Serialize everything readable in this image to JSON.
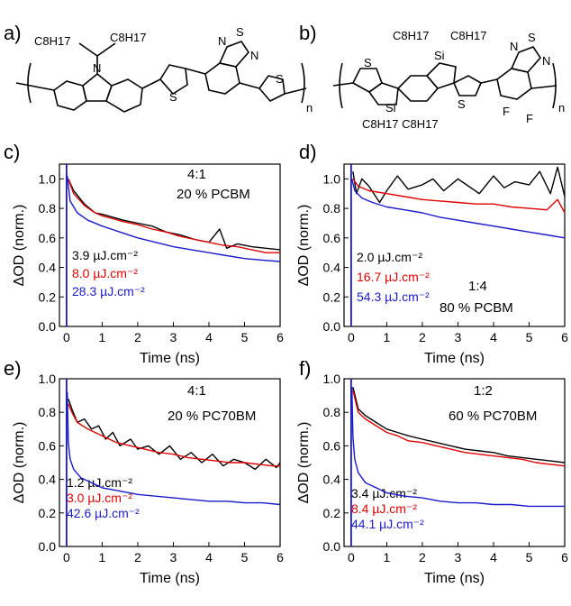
{
  "panels": {
    "a": "a)",
    "b": "b)",
    "c": "c)",
    "d": "d)",
    "e": "e)",
    "f": "f)"
  },
  "structure_a": {
    "atoms": {
      "n_top": "N",
      "s_thio1": "S",
      "s_thio2": "S",
      "s_btd": "S",
      "n_btd1": "N",
      "n_btd2": "N",
      "sub_n": "n"
    },
    "alkyl_left": "C8H17",
    "alkyl_right": "C8H17"
  },
  "structure_b": {
    "atoms": {
      "si_top": "Si",
      "si_bottom": "Si",
      "s_left": "S",
      "s_mid": "S",
      "s_btd": "S",
      "n_btd1": "N",
      "n_btd2": "N",
      "f1": "F",
      "f2": "F",
      "sub_n": "n"
    },
    "alkyl_top_left": "C8H17",
    "alkyl_top_right": "C8H17",
    "alkyl_bottom": "C8H17 C8H17"
  },
  "colors": {
    "black": "#000000",
    "red": "#e00000",
    "blue": "#1a1acc"
  },
  "chart_data": [
    {
      "id": "c",
      "type": "line",
      "xlabel": "Time (ns)",
      "ylabel": "ΔOD (norm.)",
      "xlim": [
        -0.2,
        6
      ],
      "ylim": [
        0,
        1.1
      ],
      "xticks": [
        0,
        1,
        2,
        3,
        4,
        5,
        6
      ],
      "yticks": [
        0.0,
        0.2,
        0.4,
        0.6,
        0.8,
        1.0
      ],
      "ytick_labels": [
        "0.0",
        "0.2",
        "0.4",
        "0.6",
        "0.8",
        "1.0"
      ],
      "ratio": "4:1",
      "blend": "20 % PCBM",
      "series": [
        {
          "name": "3.9 µJ.cm⁻²",
          "color": "#000000",
          "x": [
            0.05,
            0.2,
            0.5,
            0.8,
            1.0,
            1.3,
            1.6,
            2.0,
            2.4,
            2.8,
            3.2,
            3.6,
            4.0,
            4.3,
            4.5,
            4.8,
            5.2,
            5.6,
            6.0
          ],
          "y": [
            1.0,
            0.92,
            0.83,
            0.77,
            0.76,
            0.74,
            0.72,
            0.7,
            0.68,
            0.64,
            0.62,
            0.59,
            0.57,
            0.66,
            0.53,
            0.56,
            0.54,
            0.53,
            0.52
          ]
        },
        {
          "name": "8.0 µJ.cm⁻²",
          "color": "#e00000",
          "x": [
            0.05,
            0.2,
            0.5,
            0.8,
            1.0,
            1.3,
            1.6,
            2.0,
            2.4,
            2.8,
            3.2,
            3.6,
            4.0,
            4.4,
            4.8,
            5.2,
            5.6,
            6.0
          ],
          "y": [
            1.0,
            0.9,
            0.82,
            0.77,
            0.75,
            0.73,
            0.71,
            0.69,
            0.66,
            0.64,
            0.61,
            0.59,
            0.57,
            0.55,
            0.54,
            0.52,
            0.5,
            0.5
          ]
        },
        {
          "name": "28.3 µJ.cm⁻²",
          "color": "#1a1acc",
          "x": [
            0.02,
            0.1,
            0.3,
            0.6,
            1.0,
            1.5,
            2.0,
            2.5,
            3.0,
            3.5,
            4.0,
            4.5,
            5.0,
            5.5,
            6.0
          ],
          "y": [
            1.02,
            0.85,
            0.77,
            0.72,
            0.68,
            0.64,
            0.6,
            0.57,
            0.54,
            0.52,
            0.5,
            0.48,
            0.46,
            0.45,
            0.44
          ]
        }
      ]
    },
    {
      "id": "d",
      "type": "line",
      "xlabel": "Time (ns)",
      "ylabel": "ΔOD (norm.)",
      "xlim": [
        -0.2,
        6
      ],
      "ylim": [
        0,
        1.1
      ],
      "xticks": [
        0,
        1,
        2,
        3,
        4,
        5,
        6
      ],
      "yticks": [
        0.0,
        0.2,
        0.4,
        0.6,
        0.8,
        1.0
      ],
      "ytick_labels": [
        "0.0",
        "0.2",
        "0.4",
        "0.6",
        "0.8",
        "1.0"
      ],
      "ratio": "1:4",
      "blend": "80 % PCBM",
      "series": [
        {
          "name": "2.0 µJ.cm⁻²",
          "color": "#000000",
          "x": [
            0.05,
            0.15,
            0.3,
            0.5,
            0.8,
            1.0,
            1.3,
            1.6,
            2.0,
            2.3,
            2.6,
            3.0,
            3.3,
            3.6,
            4.0,
            4.3,
            4.6,
            5.0,
            5.3,
            5.6,
            5.8,
            6.0
          ],
          "y": [
            1.05,
            0.9,
            1.0,
            0.95,
            0.84,
            0.92,
            1.02,
            0.93,
            0.96,
            1.0,
            0.92,
            1.0,
            0.95,
            0.9,
            1.02,
            0.94,
            0.98,
            0.96,
            1.05,
            0.9,
            1.08,
            0.88
          ]
        },
        {
          "name": "16.7 µJ.cm⁻²",
          "color": "#e00000",
          "x": [
            0.05,
            0.2,
            0.5,
            1.0,
            1.5,
            2.0,
            2.5,
            3.0,
            3.5,
            4.0,
            4.5,
            5.0,
            5.5,
            5.8,
            6.0
          ],
          "y": [
            1.0,
            0.95,
            0.92,
            0.9,
            0.88,
            0.86,
            0.85,
            0.84,
            0.83,
            0.83,
            0.81,
            0.8,
            0.79,
            0.86,
            0.77
          ]
        },
        {
          "name": "54.3 µJ.cm⁻²",
          "color": "#1a1acc",
          "x": [
            0.02,
            0.1,
            0.3,
            0.6,
            1.0,
            1.5,
            2.0,
            2.5,
            3.0,
            3.5,
            4.0,
            4.5,
            5.0,
            5.5,
            6.0
          ],
          "y": [
            1.0,
            0.92,
            0.87,
            0.84,
            0.81,
            0.79,
            0.77,
            0.74,
            0.72,
            0.7,
            0.68,
            0.66,
            0.64,
            0.62,
            0.6
          ]
        }
      ]
    },
    {
      "id": "e",
      "type": "line",
      "xlabel": "Time (ns)",
      "ylabel": "ΔOD (norm.)",
      "xlim": [
        -0.2,
        6
      ],
      "ylim": [
        0,
        1.0
      ],
      "xticks": [
        0,
        1,
        2,
        3,
        4,
        5,
        6
      ],
      "yticks": [
        0.0,
        0.2,
        0.4,
        0.6,
        0.8,
        1.0
      ],
      "ytick_labels": [
        "0.0",
        "0.2",
        "0.4",
        "0.6",
        "0.8",
        "1.0"
      ],
      "ratio": "4:1",
      "blend": "20 % PC70BM",
      "series": [
        {
          "name": "1.2 µJ.cm⁻²",
          "color": "#000000",
          "x": [
            0.05,
            0.15,
            0.3,
            0.5,
            0.7,
            0.9,
            1.1,
            1.3,
            1.5,
            1.8,
            2.0,
            2.3,
            2.6,
            2.9,
            3.2,
            3.5,
            3.8,
            4.1,
            4.4,
            4.7,
            5.0,
            5.3,
            5.6,
            5.9,
            6.0
          ],
          "y": [
            0.88,
            0.82,
            0.74,
            0.76,
            0.7,
            0.72,
            0.64,
            0.68,
            0.6,
            0.64,
            0.58,
            0.6,
            0.55,
            0.6,
            0.52,
            0.56,
            0.5,
            0.55,
            0.48,
            0.52,
            0.5,
            0.46,
            0.52,
            0.47,
            0.5
          ]
        },
        {
          "name": "3.0 µJ.cm⁻²",
          "color": "#e00000",
          "x": [
            0.05,
            0.15,
            0.3,
            0.6,
            1.0,
            1.4,
            1.8,
            2.2,
            2.6,
            3.0,
            3.4,
            3.8,
            4.2,
            4.6,
            5.0,
            5.4,
            5.8,
            6.0
          ],
          "y": [
            0.85,
            0.8,
            0.74,
            0.7,
            0.66,
            0.62,
            0.6,
            0.58,
            0.56,
            0.55,
            0.53,
            0.52,
            0.51,
            0.5,
            0.5,
            0.49,
            0.48,
            0.48
          ]
        },
        {
          "name": "42.6 µJ.cm⁻²",
          "color": "#1a1acc",
          "x": [
            0.02,
            0.05,
            0.1,
            0.2,
            0.4,
            0.7,
            1.0,
            1.5,
            2.0,
            2.5,
            3.0,
            3.5,
            4.0,
            4.5,
            5.0,
            5.5,
            6.0
          ],
          "y": [
            0.92,
            0.62,
            0.52,
            0.46,
            0.41,
            0.38,
            0.35,
            0.33,
            0.31,
            0.3,
            0.29,
            0.28,
            0.27,
            0.27,
            0.26,
            0.26,
            0.25
          ]
        }
      ]
    },
    {
      "id": "f",
      "type": "line",
      "xlabel": "Time (ns)",
      "ylabel": "ΔOD (norm.)",
      "xlim": [
        -0.2,
        6
      ],
      "ylim": [
        0,
        1.0
      ],
      "xticks": [
        0,
        1,
        2,
        3,
        4,
        5,
        6
      ],
      "yticks": [
        0.0,
        0.2,
        0.4,
        0.6,
        0.8,
        1.0
      ],
      "ytick_labels": [
        "0.0",
        "0.2",
        "0.4",
        "0.6",
        "0.8",
        "1.0"
      ],
      "ratio": "1:2",
      "blend": "60 % PC70BM",
      "series": [
        {
          "name": "3.4 µJ.cm⁻²",
          "color": "#000000",
          "x": [
            0.05,
            0.2,
            0.4,
            0.7,
            1.0,
            1.3,
            1.6,
            2.0,
            2.4,
            2.8,
            3.2,
            3.6,
            4.0,
            4.4,
            4.8,
            5.2,
            5.6,
            6.0
          ],
          "y": [
            0.95,
            0.82,
            0.78,
            0.74,
            0.7,
            0.68,
            0.66,
            0.64,
            0.62,
            0.6,
            0.58,
            0.57,
            0.56,
            0.54,
            0.53,
            0.52,
            0.51,
            0.5
          ]
        },
        {
          "name": "8.4 µJ.cm⁻²",
          "color": "#e00000",
          "x": [
            0.05,
            0.2,
            0.4,
            0.7,
            1.0,
            1.3,
            1.6,
            2.0,
            2.4,
            2.8,
            3.2,
            3.6,
            4.0,
            4.4,
            4.8,
            5.2,
            5.6,
            6.0
          ],
          "y": [
            0.93,
            0.8,
            0.76,
            0.72,
            0.68,
            0.66,
            0.63,
            0.62,
            0.6,
            0.58,
            0.56,
            0.55,
            0.54,
            0.53,
            0.52,
            0.5,
            0.49,
            0.48
          ]
        },
        {
          "name": "44.1 µJ.cm⁻²",
          "color": "#1a1acc",
          "x": [
            0.02,
            0.05,
            0.1,
            0.2,
            0.4,
            0.7,
            1.0,
            1.5,
            2.0,
            2.5,
            3.0,
            3.5,
            4.0,
            4.5,
            5.0,
            5.5,
            6.0
          ],
          "y": [
            0.95,
            0.65,
            0.52,
            0.44,
            0.38,
            0.35,
            0.32,
            0.3,
            0.29,
            0.27,
            0.26,
            0.26,
            0.25,
            0.25,
            0.24,
            0.24,
            0.24
          ]
        }
      ]
    }
  ]
}
